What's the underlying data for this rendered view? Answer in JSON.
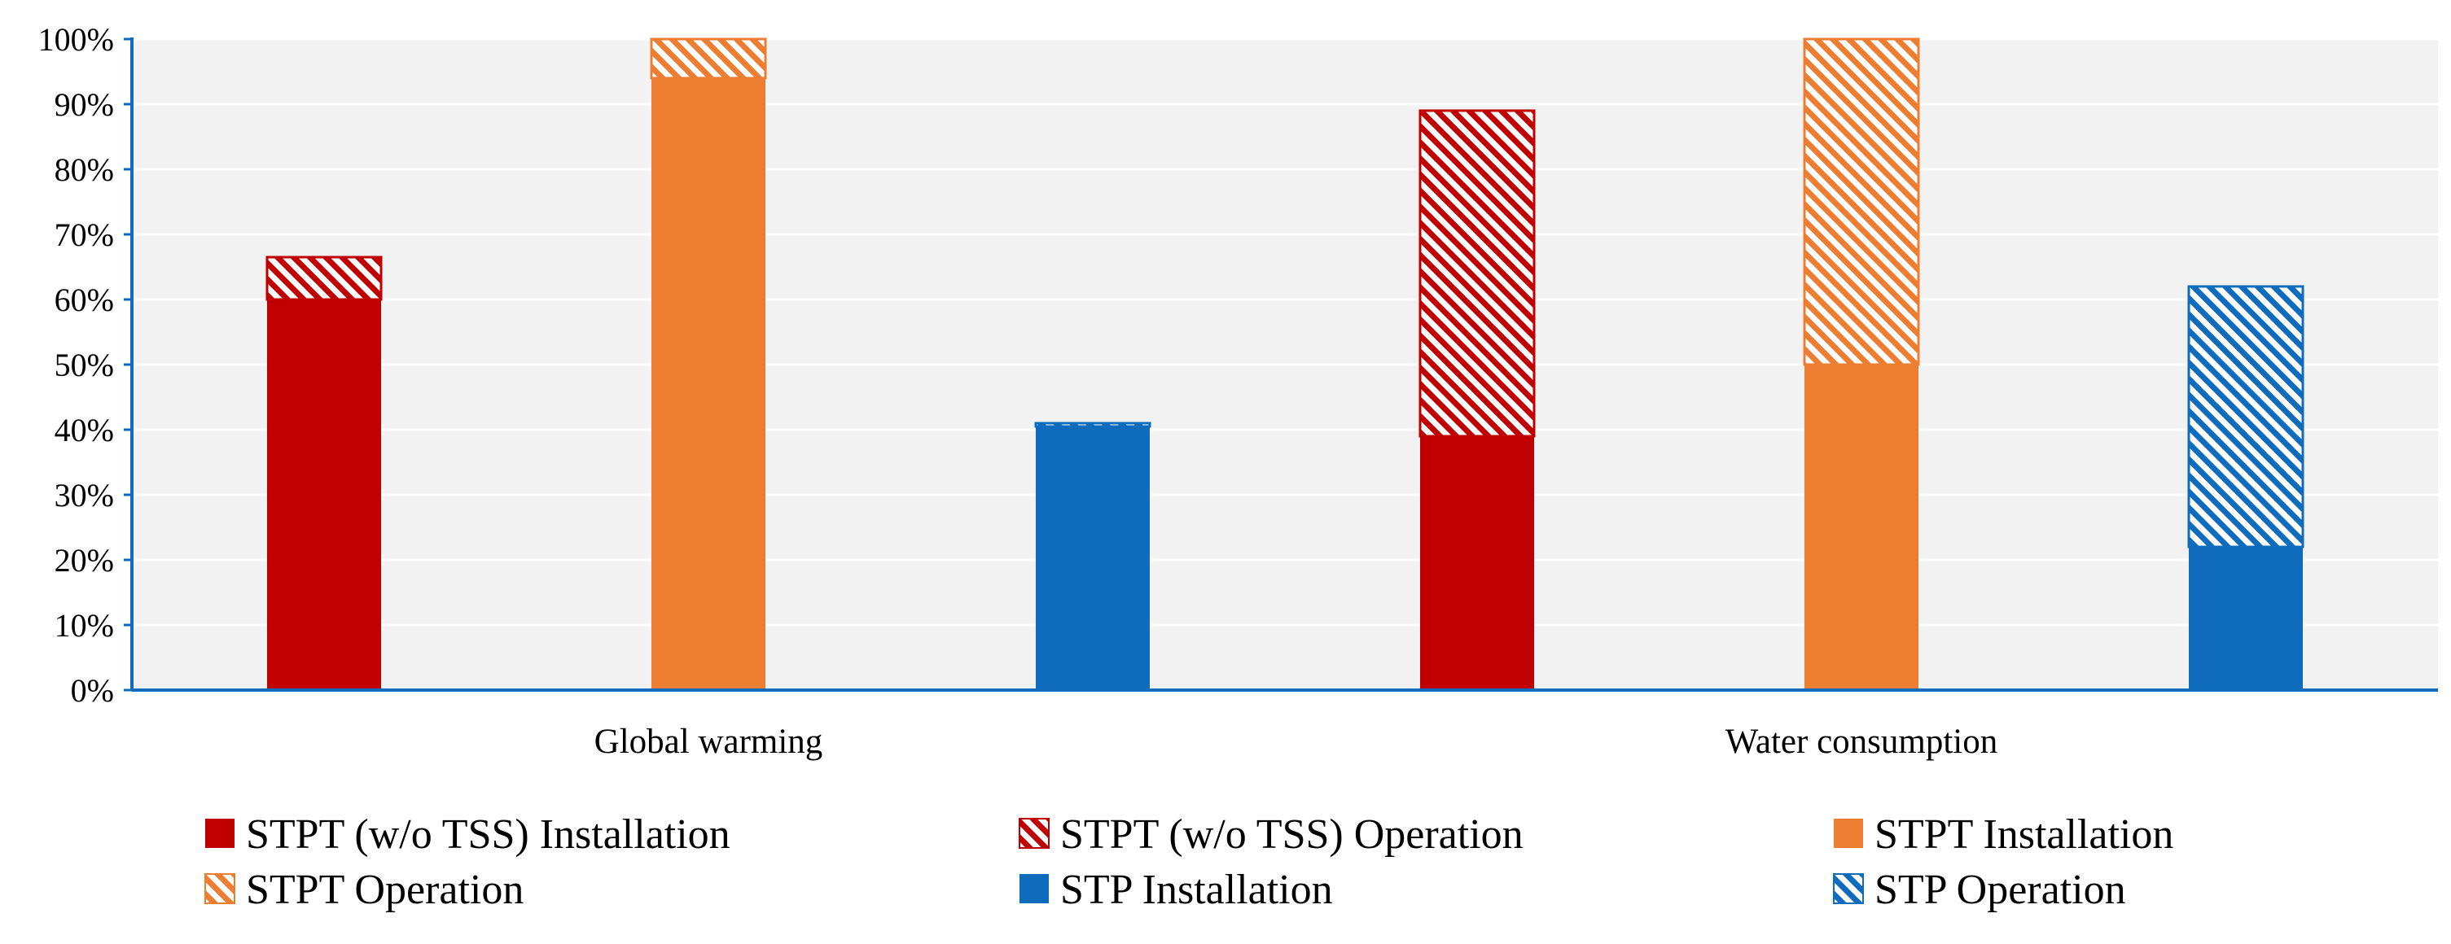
{
  "chart_data": {
    "type": "bar",
    "stacked": true,
    "categories": [
      "Global warming",
      "Water consumption"
    ],
    "groups": [
      {
        "name": "STPT (w/o TSS)",
        "color": "#C00000"
      },
      {
        "name": "STPT",
        "color": "#ED7D31"
      },
      {
        "name": "STP",
        "color": "#0F6CBD"
      }
    ],
    "series": [
      {
        "name": "STPT (w/o TSS) Installation",
        "group": "STPT (w/o TSS)",
        "pattern": "solid",
        "color": "#C00000",
        "values": [
          60,
          39
        ]
      },
      {
        "name": "STPT (w/o TSS) Operation",
        "group": "STPT (w/o TSS)",
        "pattern": "hatched",
        "color": "#C00000",
        "values": [
          6.5,
          50
        ]
      },
      {
        "name": "STPT Installation",
        "group": "STPT",
        "pattern": "solid",
        "color": "#ED7D31",
        "values": [
          94,
          50
        ]
      },
      {
        "name": "STPT Operation",
        "group": "STPT",
        "pattern": "hatched",
        "color": "#ED7D31",
        "values": [
          6,
          50
        ]
      },
      {
        "name": "STP Installation",
        "group": "STP",
        "pattern": "solid",
        "color": "#0F6CBD",
        "values": [
          40.5,
          22
        ]
      },
      {
        "name": "STP Operation",
        "group": "STP",
        "pattern": "hatched",
        "color": "#0F6CBD",
        "values": [
          0.5,
          40
        ]
      }
    ],
    "ylim": [
      0,
      100
    ],
    "yticks": [
      "0%",
      "10%",
      "20%",
      "30%",
      "40%",
      "50%",
      "60%",
      "70%",
      "80%",
      "90%",
      "100%"
    ],
    "grid": true,
    "legend_position": "bottom",
    "title": "",
    "xlabel": "",
    "ylabel": ""
  }
}
